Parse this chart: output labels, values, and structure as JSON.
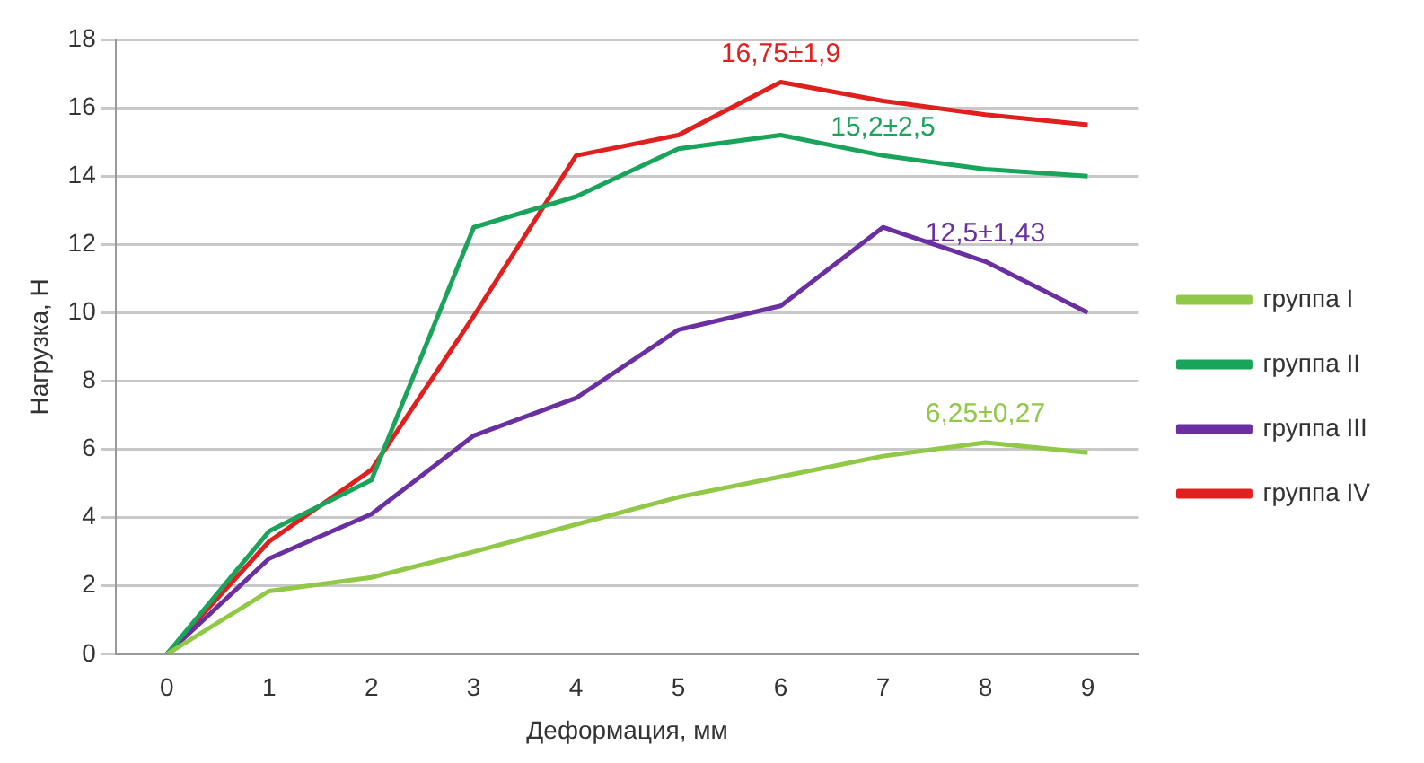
{
  "chart_data": {
    "type": "line",
    "xlabel": "Деформация, мм",
    "ylabel": "Нагрузка, Н",
    "categories": [
      "0",
      "1",
      "2",
      "3",
      "4",
      "5",
      "6",
      "7",
      "8",
      "9"
    ],
    "series": [
      {
        "name": "группа I",
        "color": "#92c847",
        "values": [
          0,
          1.85,
          2.25,
          3,
          3.8,
          4.6,
          5.2,
          5.8,
          6.2,
          5.9
        ]
      },
      {
        "name": "группа II",
        "color": "#1aa35a",
        "values": [
          0,
          3.6,
          5.1,
          12.5,
          13.4,
          14.8,
          15.2,
          14.6,
          14.2,
          14.0
        ]
      },
      {
        "name": "группа III",
        "color": "#6a2fa0",
        "values": [
          0,
          2.8,
          4.1,
          6.4,
          7.5,
          9.5,
          10.2,
          12.5,
          11.5,
          10.0
        ]
      },
      {
        "name": "группа IV",
        "color": "#e0201e",
        "values": [
          0,
          3.3,
          5.4,
          9.9,
          14.6,
          15.2,
          16.75,
          16.2,
          15.8,
          15.5
        ]
      }
    ],
    "ylim": [
      0,
      18
    ],
    "yticks": [
      0,
      2,
      4,
      6,
      8,
      10,
      12,
      14,
      16,
      18
    ],
    "grid": "y",
    "legend": "right",
    "marker": "none",
    "line_style": "solid",
    "annotations": [
      {
        "text": "16,75±1,9",
        "x": "6",
        "y": 16.75
      },
      {
        "text": "15,2±2,5",
        "x": "7",
        "y": 14.6
      },
      {
        "text": "12,5±1,43",
        "x": "8",
        "y": 11.5
      },
      {
        "text": "6,25±0,27",
        "x": "8",
        "y": 6.2
      }
    ]
  }
}
